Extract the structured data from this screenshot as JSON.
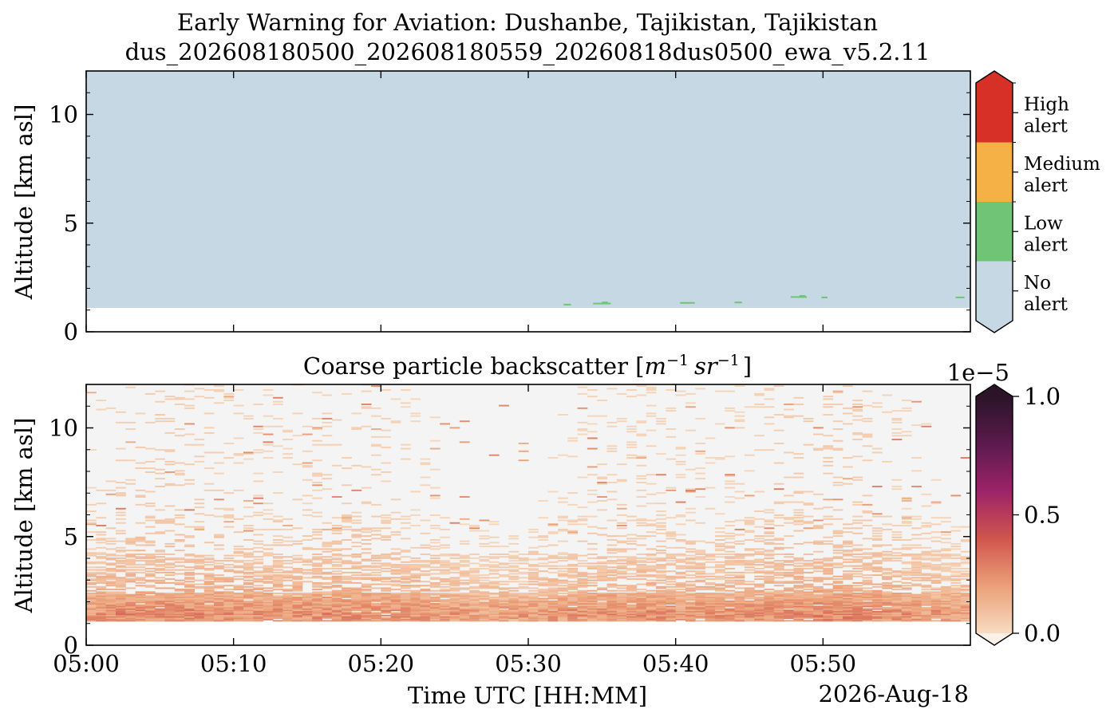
{
  "figure": {
    "title_line1": "Early Warning for Aviation: Dushanbe, Tajikistan, Tajikistan",
    "title_line2": "dus_202608180500_202608180559_20260818dus0500_ewa_v5.2.11",
    "date_label": "2026-Aug-18"
  },
  "chart_data": [
    {
      "type": "heatmap",
      "panel": "alert",
      "title": "",
      "xlabel": "",
      "ylabel": "Altitude [km asl]",
      "x_ticks": [
        "05:00",
        "05:10",
        "05:20",
        "05:30",
        "05:40",
        "05:50"
      ],
      "x_tick_minutes": [
        0,
        10,
        20,
        30,
        40,
        50
      ],
      "xlim_minutes": [
        0,
        60
      ],
      "y_ticks": [
        0,
        5,
        10
      ],
      "ylim_km": [
        0,
        12
      ],
      "data_floor_km": 1.1,
      "background_class": "No alert",
      "alert_classes": [
        {
          "label_line1": "No",
          "label_line2": "alert",
          "color": "#c5d8e3"
        },
        {
          "label_line1": "Low",
          "label_line2": "alert",
          "color": "#70c475"
        },
        {
          "label_line1": "Medium",
          "label_line2": "alert",
          "color": "#f6b146"
        },
        {
          "label_line1": "High",
          "label_line2": "alert",
          "color": "#d73027"
        }
      ],
      "low_alert_segments": [
        {
          "start_min": 32.4,
          "end_min": 32.9,
          "alt_km": 1.25
        },
        {
          "start_min": 34.4,
          "end_min": 35.6,
          "alt_km": 1.3
        },
        {
          "start_min": 35.0,
          "end_min": 35.4,
          "alt_km": 1.35
        },
        {
          "start_min": 40.3,
          "end_min": 41.3,
          "alt_km": 1.33
        },
        {
          "start_min": 44.0,
          "end_min": 44.5,
          "alt_km": 1.35
        },
        {
          "start_min": 47.8,
          "end_min": 48.9,
          "alt_km": 1.6
        },
        {
          "start_min": 48.4,
          "end_min": 48.8,
          "alt_km": 1.65
        },
        {
          "start_min": 49.9,
          "end_min": 50.3,
          "alt_km": 1.58
        },
        {
          "start_min": 59.0,
          "end_min": 59.6,
          "alt_km": 1.58
        }
      ]
    },
    {
      "type": "heatmap",
      "panel": "backscatter",
      "title_text": "Coarse particle backscatter [",
      "title_unit_m": "m",
      "title_unit_sr": "sr",
      "title_exponent": "−1",
      "title_close": "]",
      "xlabel": "Time UTC [HH:MM]",
      "ylabel": "Altitude [km asl]",
      "x_ticks": [
        "05:00",
        "05:10",
        "05:20",
        "05:30",
        "05:40",
        "05:50"
      ],
      "x_tick_minutes": [
        0,
        10,
        20,
        30,
        40,
        50
      ],
      "xlim_minutes": [
        0,
        60
      ],
      "y_ticks": [
        0,
        5,
        10
      ],
      "ylim_km": [
        0,
        12
      ],
      "data_floor_km": 1.1,
      "colorbar_multiplier": "1e−5",
      "colorbar_ticks": [
        "0.0",
        "0.5",
        "1.0"
      ],
      "colorbar_tick_values": [
        0.0,
        0.5,
        1.0
      ],
      "clim": [
        0,
        1
      ],
      "colormap_stops": [
        "#f7dcc2",
        "#eba078",
        "#d0554d",
        "#9c2368",
        "#5b1a4d",
        "#2c1428"
      ],
      "layer_profile": [
        {
          "alt_km": 1.1,
          "mean": 0.2
        },
        {
          "alt_km": 1.4,
          "mean": 0.23
        },
        {
          "alt_km": 2.0,
          "mean": 0.17
        },
        {
          "alt_km": 2.6,
          "mean": 0.12
        },
        {
          "alt_km": 3.5,
          "mean": 0.08
        },
        {
          "alt_km": 4.5,
          "mean": 0.06
        },
        {
          "alt_km": 6.0,
          "mean": 0.03
        },
        {
          "alt_km": 12.0,
          "mean": 0.02
        }
      ]
    }
  ]
}
